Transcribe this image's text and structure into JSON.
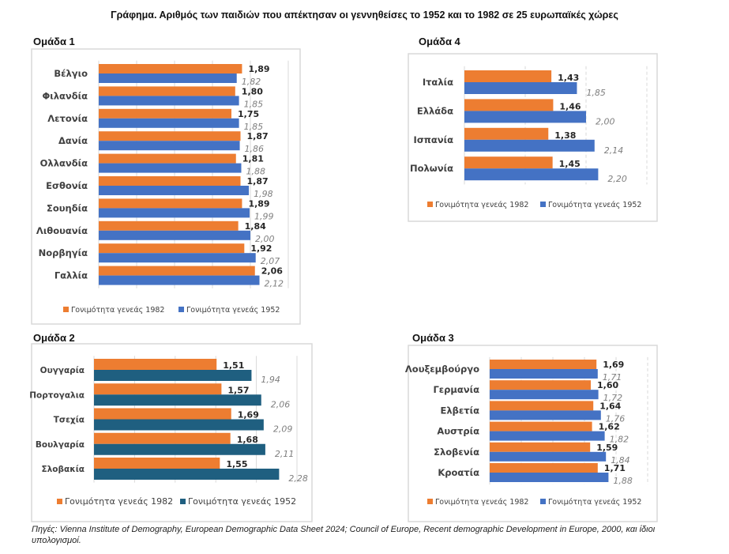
{
  "title": "Γράφημα. Αριθμός των παιδιών που απέκτησαν  οι γεννηθείσες το 1952 και το 1982 σε 25 ευρωπαϊκές χώρες",
  "source": "Πηγές: Vienna Institute of Demography, European Demographic Data Sheet 2024;  Council of Europe, Recent demographic Development in Europe, 2000, και ίδιοι υπολογισμοί.",
  "colors": {
    "orange": "#ED7D31",
    "blue": "#4472C4",
    "teal": "#1F5F80"
  },
  "chart_data": [
    {
      "type": "bar",
      "orientation": "horizontal",
      "title": "Ομάδα 1",
      "xlim": [
        0,
        2.5
      ],
      "grid": true,
      "categories": [
        "Βέλγιο",
        "Φιλανδία",
        "Λετονία",
        "Δανία",
        "Ολλανδία",
        "Εσθονία",
        "Σουηδία",
        "Λιθουανία",
        "Νορβηγία",
        "Γαλλία"
      ],
      "series": [
        {
          "name": "Γονιμότητα γενεάς  1982",
          "color": "#ED7D31",
          "values": [
            1.89,
            1.8,
            1.75,
            1.87,
            1.81,
            1.87,
            1.89,
            1.84,
            1.92,
            2.06
          ],
          "labels": [
            "1,89",
            "1,80",
            "1,75",
            "1,87",
            "1,81",
            "1,87",
            "1,89",
            "1,84",
            "1,92",
            "2,06"
          ]
        },
        {
          "name": "Γονιμότητα γενεάς  1952",
          "color": "#4472C4",
          "values": [
            1.82,
            1.85,
            1.85,
            1.86,
            1.88,
            1.98,
            1.99,
            2.0,
            2.07,
            2.12
          ],
          "labels": [
            "1,82",
            "1,85",
            "1,85",
            "1,86",
            "1,88",
            "1,98",
            "1,99",
            "2,00",
            "2,07",
            "2,12"
          ]
        }
      ],
      "legend": "bottom"
    },
    {
      "type": "bar",
      "orientation": "horizontal",
      "title": "Ομάδα 2",
      "xlim": [
        0,
        2.5
      ],
      "grid": true,
      "categories": [
        "Ουγγαρία",
        "Πορτογαλια",
        "Τσεχία",
        "Βουλγαρία",
        "Σλοβακία"
      ],
      "series": [
        {
          "name": "Γονιμότητα γενεάς  1982",
          "color": "#ED7D31",
          "values": [
            1.51,
            1.57,
            1.69,
            1.68,
            1.55
          ],
          "labels": [
            "1,51",
            "1,57",
            "1,69",
            "1,68",
            "1,55"
          ]
        },
        {
          "name": "Γονιμότητα γενεάς  1952",
          "color": "#1F5F80",
          "values": [
            1.94,
            2.06,
            2.09,
            2.11,
            2.28
          ],
          "labels": [
            "1,94",
            "2,06",
            "2,09",
            "2,11",
            "2,28"
          ]
        }
      ],
      "legend": "bottom"
    },
    {
      "type": "bar",
      "orientation": "horizontal",
      "title": "Ομάδα 4",
      "xlim": [
        0,
        3
      ],
      "grid": true,
      "categories": [
        "Ιταλία",
        "Ελλάδα",
        "Ισπανία",
        "Πολωνία"
      ],
      "series": [
        {
          "name": "Γονιμότητα γενεάς  1982",
          "color": "#ED7D31",
          "values": [
            1.43,
            1.46,
            1.38,
            1.45
          ],
          "labels": [
            "1,43",
            "1,46",
            "1,38",
            "1,45"
          ]
        },
        {
          "name": "Γονιμότητα γενεάς  1952",
          "color": "#4472C4",
          "values": [
            1.85,
            2.0,
            2.14,
            2.2
          ],
          "labels": [
            "1,85",
            "2,00",
            "2,14",
            "2,20"
          ]
        }
      ],
      "legend": "bottom"
    },
    {
      "type": "bar",
      "orientation": "horizontal",
      "title": "Ομάδα 3",
      "xlim": [
        0,
        2.5
      ],
      "grid": true,
      "categories": [
        "Λουξεμβούργο",
        "Γερμανία",
        "Ελβετία",
        "Αυστρία",
        "Σλοβενία",
        "Κροατία"
      ],
      "series": [
        {
          "name": "Γονιμότητα γενεάς  1982",
          "color": "#ED7D31",
          "values": [
            1.69,
            1.6,
            1.64,
            1.62,
            1.59,
            1.71
          ],
          "labels": [
            "1,69",
            "1,60",
            "1,64",
            "1,62",
            "1,59",
            "1,71"
          ]
        },
        {
          "name": "Γονιμότητα γενεάς  1952",
          "color": "#4472C4",
          "values": [
            1.71,
            1.72,
            1.76,
            1.82,
            1.84,
            1.88
          ],
          "labels": [
            "1,71",
            "1,72",
            "1,76",
            "1,82",
            "1,84",
            "1,88"
          ]
        }
      ],
      "legend": "bottom"
    }
  ]
}
